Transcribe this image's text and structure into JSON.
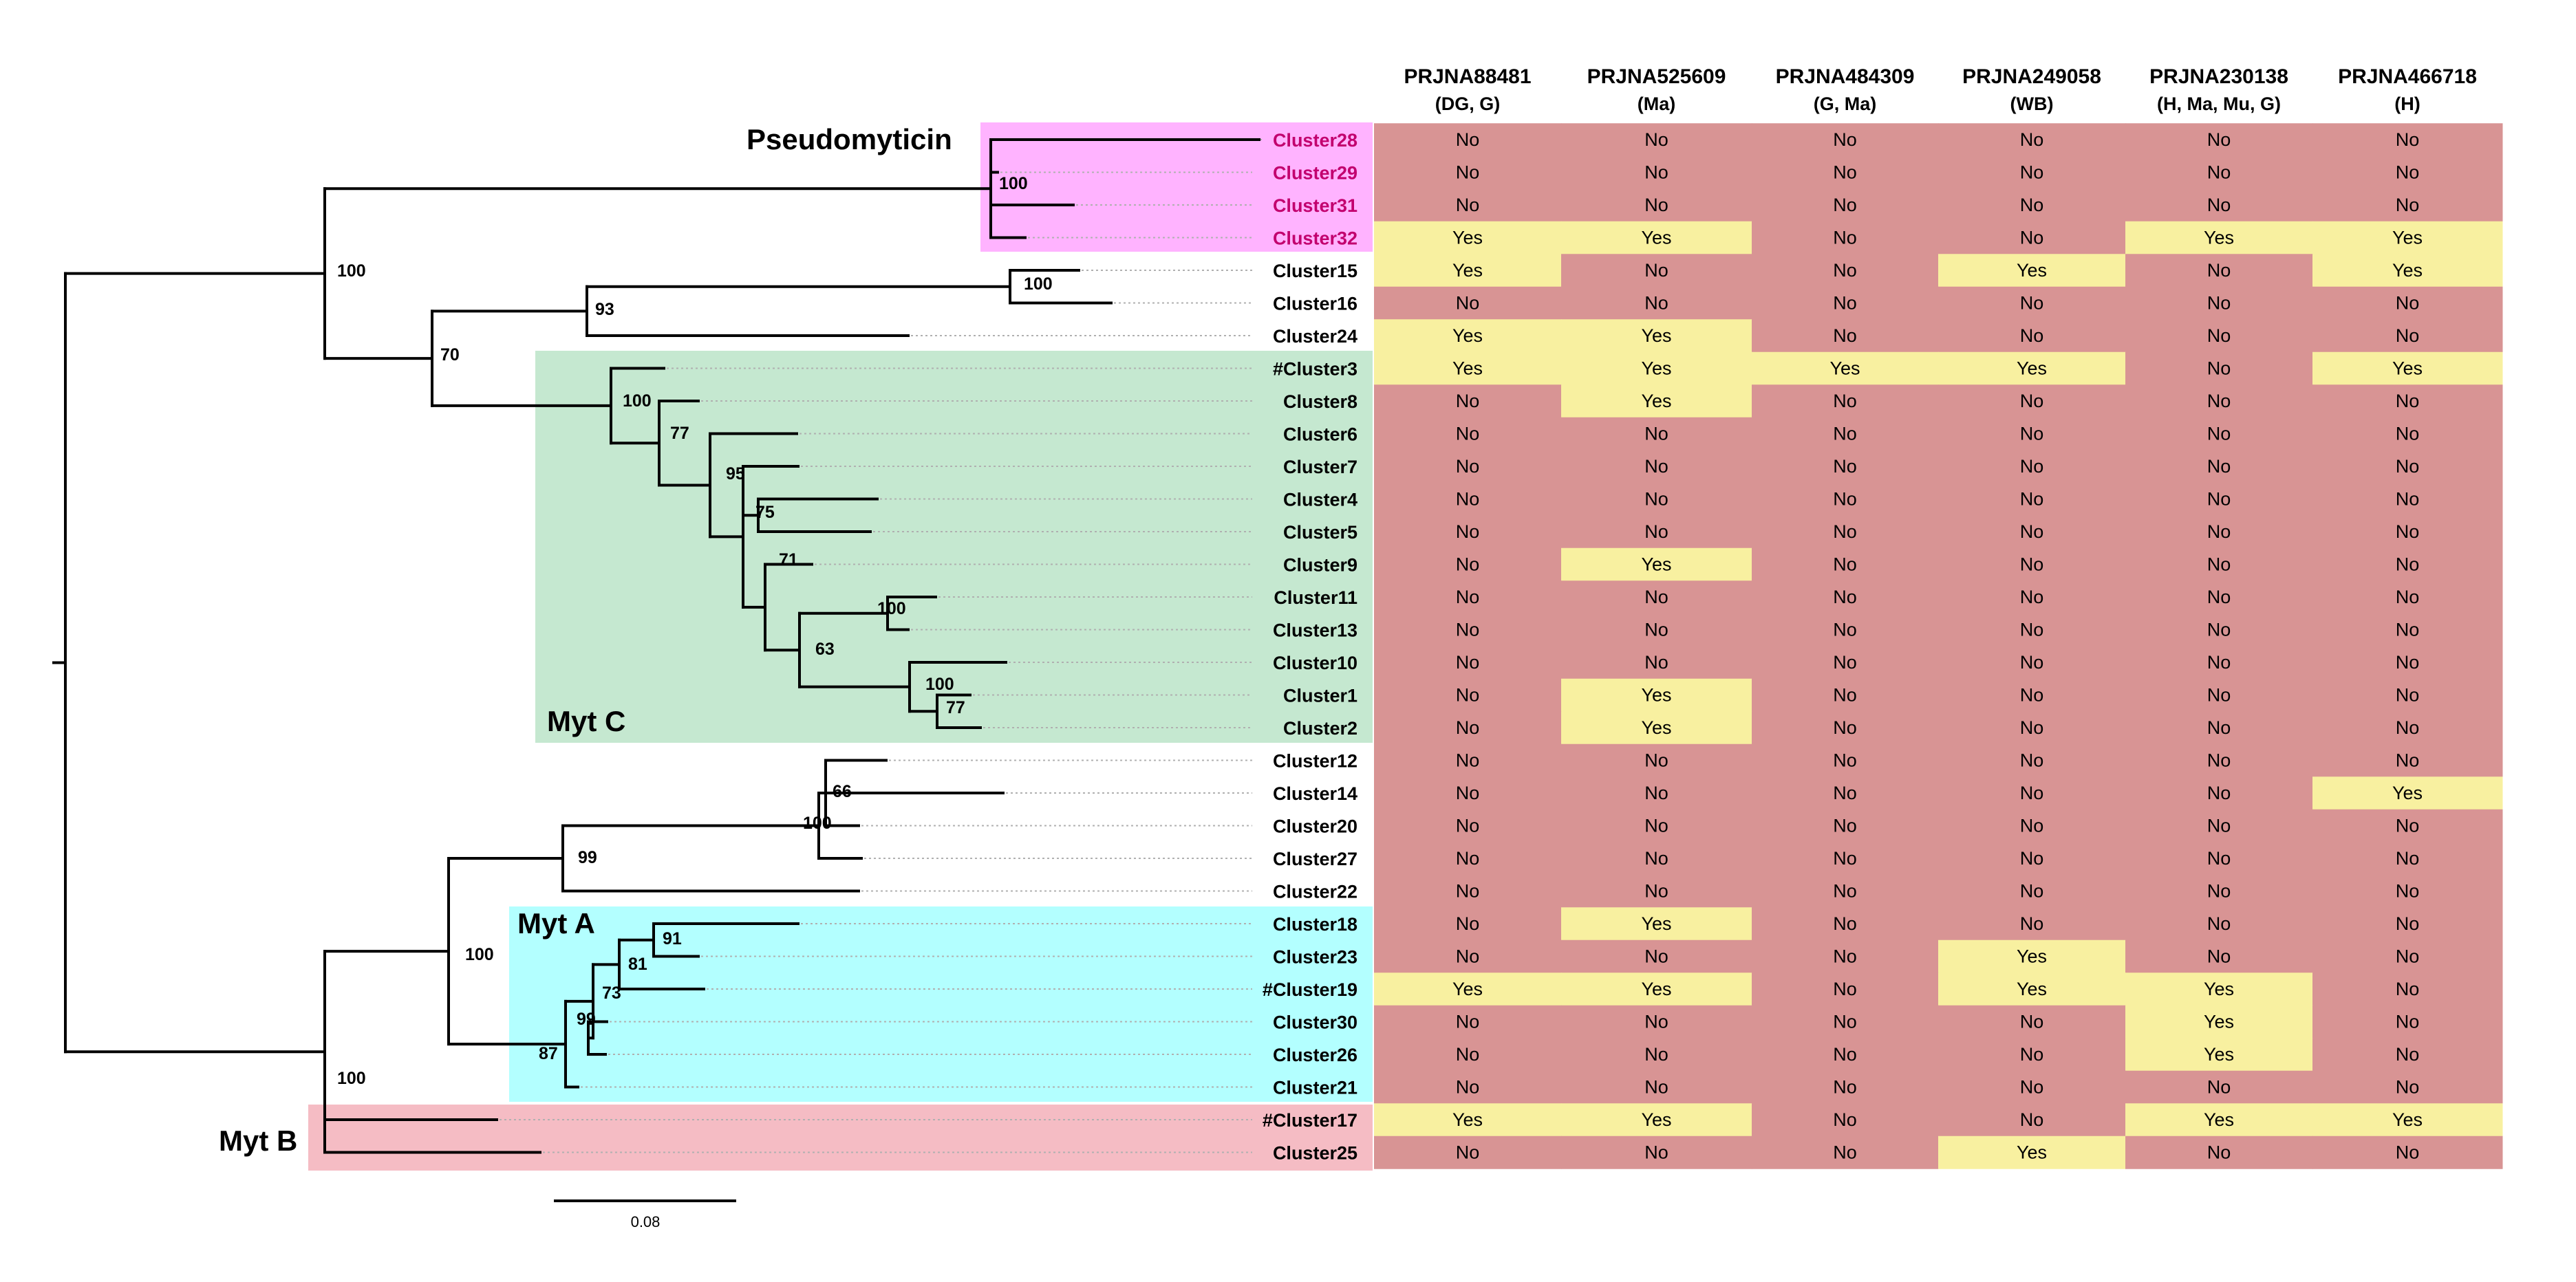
{
  "projects": [
    {
      "id": "PRJNA88481",
      "sub": "(DG, G)"
    },
    {
      "id": "PRJNA525609",
      "sub": "(Ma)"
    },
    {
      "id": "PRJNA484309",
      "sub": "(G, Ma)"
    },
    {
      "id": "PRJNA249058",
      "sub": "(WB)"
    },
    {
      "id": "PRJNA230138",
      "sub": "(H, Ma, Mu, G)"
    },
    {
      "id": "PRJNA466718",
      "sub": "(H)"
    }
  ],
  "rows": [
    {
      "label": "Cluster28",
      "values": [
        "No",
        "No",
        "No",
        "No",
        "No",
        "No"
      ]
    },
    {
      "label": "Cluster29",
      "values": [
        "No",
        "No",
        "No",
        "No",
        "No",
        "No"
      ]
    },
    {
      "label": "Cluster31",
      "values": [
        "No",
        "No",
        "No",
        "No",
        "No",
        "No"
      ]
    },
    {
      "label": "Cluster32",
      "values": [
        "Yes",
        "Yes",
        "No",
        "No",
        "Yes",
        "Yes"
      ]
    },
    {
      "label": "Cluster15",
      "values": [
        "Yes",
        "No",
        "No",
        "Yes",
        "No",
        "Yes"
      ]
    },
    {
      "label": "Cluster16",
      "values": [
        "No",
        "No",
        "No",
        "No",
        "No",
        "No"
      ]
    },
    {
      "label": "Cluster24",
      "values": [
        "Yes",
        "Yes",
        "No",
        "No",
        "No",
        "No"
      ]
    },
    {
      "label": "#Cluster3",
      "values": [
        "Yes",
        "Yes",
        "Yes",
        "Yes",
        "No",
        "Yes"
      ]
    },
    {
      "label": "Cluster8",
      "values": [
        "No",
        "Yes",
        "No",
        "No",
        "No",
        "No"
      ]
    },
    {
      "label": "Cluster6",
      "values": [
        "No",
        "No",
        "No",
        "No",
        "No",
        "No"
      ]
    },
    {
      "label": "Cluster7",
      "values": [
        "No",
        "No",
        "No",
        "No",
        "No",
        "No"
      ]
    },
    {
      "label": "Cluster4",
      "values": [
        "No",
        "No",
        "No",
        "No",
        "No",
        "No"
      ]
    },
    {
      "label": "Cluster5",
      "values": [
        "No",
        "No",
        "No",
        "No",
        "No",
        "No"
      ]
    },
    {
      "label": "Cluster9",
      "values": [
        "No",
        "Yes",
        "No",
        "No",
        "No",
        "No"
      ]
    },
    {
      "label": "Cluster11",
      "values": [
        "No",
        "No",
        "No",
        "No",
        "No",
        "No"
      ]
    },
    {
      "label": "Cluster13",
      "values": [
        "No",
        "No",
        "No",
        "No",
        "No",
        "No"
      ]
    },
    {
      "label": "Cluster10",
      "values": [
        "No",
        "No",
        "No",
        "No",
        "No",
        "No"
      ]
    },
    {
      "label": "Cluster1",
      "values": [
        "No",
        "Yes",
        "No",
        "No",
        "No",
        "No"
      ]
    },
    {
      "label": "Cluster2",
      "values": [
        "No",
        "Yes",
        "No",
        "No",
        "No",
        "No"
      ]
    },
    {
      "label": "Cluster12",
      "values": [
        "No",
        "No",
        "No",
        "No",
        "No",
        "No"
      ]
    },
    {
      "label": "Cluster14",
      "values": [
        "No",
        "No",
        "No",
        "No",
        "No",
        "Yes"
      ]
    },
    {
      "label": "Cluster20",
      "values": [
        "No",
        "No",
        "No",
        "No",
        "No",
        "No"
      ]
    },
    {
      "label": "Cluster27",
      "values": [
        "No",
        "No",
        "No",
        "No",
        "No",
        "No"
      ]
    },
    {
      "label": "Cluster22",
      "values": [
        "No",
        "No",
        "No",
        "No",
        "No",
        "No"
      ]
    },
    {
      "label": "Cluster18",
      "values": [
        "No",
        "Yes",
        "No",
        "No",
        "No",
        "No"
      ]
    },
    {
      "label": "Cluster23",
      "values": [
        "No",
        "No",
        "No",
        "Yes",
        "No",
        "No"
      ]
    },
    {
      "label": "#Cluster19",
      "values": [
        "Yes",
        "Yes",
        "No",
        "Yes",
        "Yes",
        "No"
      ]
    },
    {
      "label": "Cluster30",
      "values": [
        "No",
        "No",
        "No",
        "No",
        "Yes",
        "No"
      ]
    },
    {
      "label": "Cluster26",
      "values": [
        "No",
        "No",
        "No",
        "No",
        "Yes",
        "No"
      ]
    },
    {
      "label": "Cluster21",
      "values": [
        "No",
        "No",
        "No",
        "No",
        "No",
        "No"
      ]
    },
    {
      "label": "#Cluster17",
      "values": [
        "Yes",
        "Yes",
        "No",
        "No",
        "Yes",
        "Yes"
      ]
    },
    {
      "label": "Cluster25",
      "values": [
        "No",
        "No",
        "No",
        "Yes",
        "No",
        "No"
      ]
    }
  ],
  "clades": [
    {
      "label": "Pseudomyticin",
      "color": "#ffb3ff"
    },
    {
      "label": "Myt C",
      "color": "#c5e8d0"
    },
    {
      "label": "Myt A",
      "color": "#b3ffff"
    },
    {
      "label": "Myt B",
      "color": "#f5bcc4"
    }
  ],
  "support_values": [
    "100",
    "100",
    "93",
    "70",
    "100",
    "100",
    "77",
    "95",
    "75",
    "71",
    "100",
    "63",
    "100",
    "77",
    "66",
    "100",
    "99",
    "100",
    "91",
    "81",
    "73",
    "99",
    "87",
    "100"
  ],
  "scale_bar": {
    "label": "0.08"
  },
  "colors": {
    "yes": "#f8f0a0",
    "no": "#d89494",
    "pink_label": "#c2006e"
  }
}
